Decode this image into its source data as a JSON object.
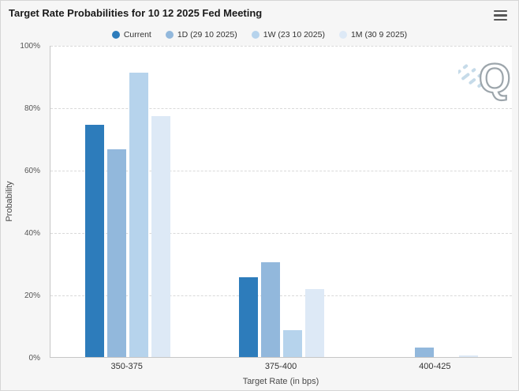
{
  "header": {
    "title": "Target Rate Probabilities for 10 12 2025 Fed Meeting"
  },
  "watermark": {
    "letter": "Q"
  },
  "colors": {
    "page_background": "#f6f6f6",
    "plot_background": "#ffffff"
  },
  "chart_data": {
    "type": "bar",
    "title": "Target Rate Probabilities for 10 12 2025 Fed Meeting",
    "xlabel": "Target Rate (in bps)",
    "ylabel": "Probability",
    "categories": [
      "350-375",
      "375-400",
      "400-425"
    ],
    "series": [
      {
        "name": "Current",
        "color": "#2d7cbb",
        "values": [
          74.5,
          25.5,
          0
        ]
      },
      {
        "name": "1D (29 10 2025)",
        "color": "#92b8dc",
        "values": [
          66.5,
          30.5,
          3.0
        ]
      },
      {
        "name": "1W (23 10 2025)",
        "color": "#b6d3ec",
        "values": [
          91.2,
          8.7,
          0
        ]
      },
      {
        "name": "1M (30 9 2025)",
        "color": "#dde9f6",
        "values": [
          77.3,
          21.9,
          0.5
        ]
      }
    ],
    "ylim": [
      0,
      100
    ],
    "yticks": [
      "0%",
      "20%",
      "40%",
      "60%",
      "80%",
      "100%"
    ],
    "grid": true,
    "legend_position": "top"
  }
}
